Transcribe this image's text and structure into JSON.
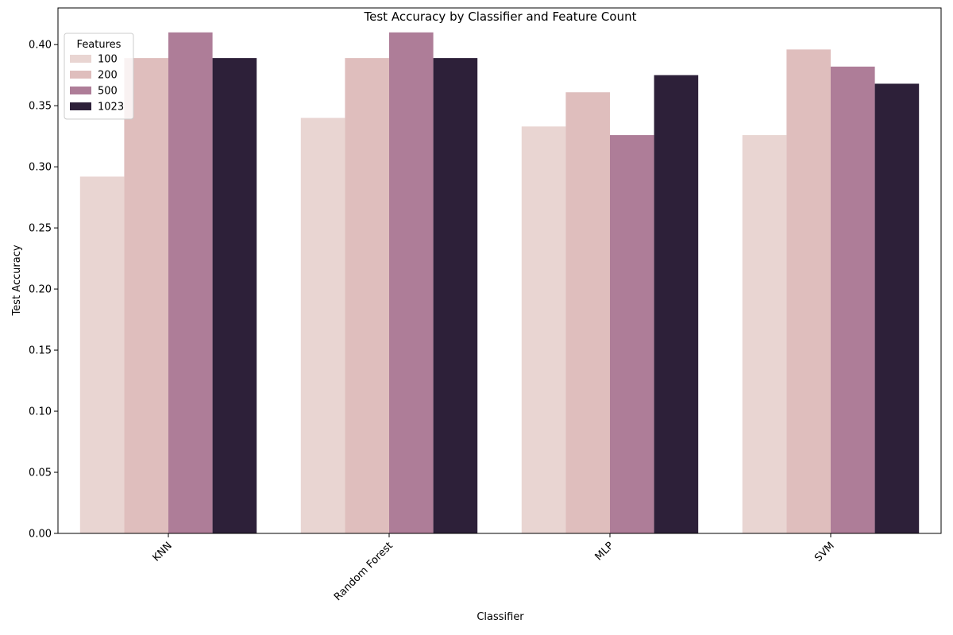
{
  "chart_data": {
    "type": "bar",
    "title": "Test Accuracy by Classifier and Feature Count",
    "xlabel": "Classifier",
    "ylabel": "Test Accuracy",
    "categories": [
      "KNN",
      "Random Forest",
      "MLP",
      "SVM"
    ],
    "ylim": [
      0,
      0.43
    ],
    "yticks": [
      "0.00",
      "0.05",
      "0.10",
      "0.15",
      "0.20",
      "0.25",
      "0.30",
      "0.35",
      "0.40"
    ],
    "grid": false,
    "legend": {
      "title": "Features",
      "placement": "top-left"
    },
    "series": [
      {
        "name": "100",
        "color": "#e9d5d2",
        "values": [
          0.292,
          0.34,
          0.333,
          0.326
        ]
      },
      {
        "name": "200",
        "color": "#dfbebd",
        "values": [
          0.389,
          0.389,
          0.361,
          0.396
        ]
      },
      {
        "name": "500",
        "color": "#ae7d98",
        "values": [
          0.41,
          0.41,
          0.326,
          0.382
        ]
      },
      {
        "name": "1023",
        "color": "#2d2039",
        "values": [
          0.389,
          0.389,
          0.375,
          0.368
        ]
      }
    ]
  }
}
